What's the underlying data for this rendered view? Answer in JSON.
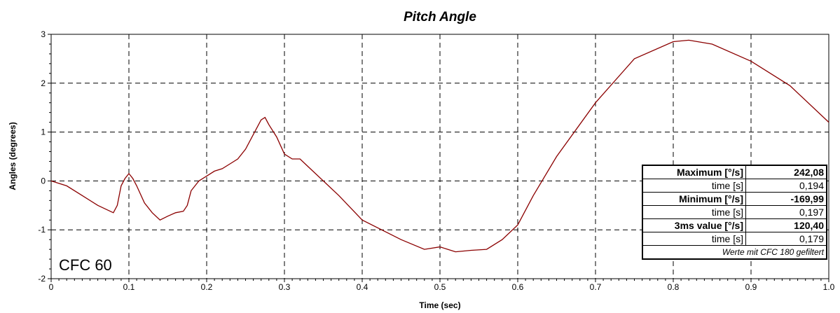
{
  "chart_data": {
    "type": "line",
    "title": "Pitch Angle",
    "xlabel": "Time (sec)",
    "ylabel": "Angles (degrees)",
    "xlim": [
      0,
      1.0
    ],
    "ylim": [
      -2,
      3
    ],
    "x_ticks": [
      "0",
      "0.1",
      "0.2",
      "0.3",
      "0.4",
      "0.5",
      "0.6",
      "0.7",
      "0.8",
      "0.9",
      "1.0"
    ],
    "y_ticks": [
      "-2",
      "-1",
      "0",
      "1",
      "2",
      "3"
    ],
    "grid": true,
    "line_color": "#8b0000",
    "series": [
      {
        "x": [
          0.0,
          0.02,
          0.04,
          0.06,
          0.08,
          0.085,
          0.09,
          0.095,
          0.1,
          0.105,
          0.11,
          0.12,
          0.13,
          0.14,
          0.15,
          0.16,
          0.17,
          0.175,
          0.18,
          0.19,
          0.2,
          0.21,
          0.22,
          0.23,
          0.24,
          0.25,
          0.26,
          0.27,
          0.275,
          0.28,
          0.29,
          0.3,
          0.31,
          0.32,
          0.33,
          0.35,
          0.37,
          0.4,
          0.45,
          0.48,
          0.5,
          0.52,
          0.54,
          0.56,
          0.58,
          0.6,
          0.62,
          0.65,
          0.7,
          0.75,
          0.8,
          0.82,
          0.85,
          0.9,
          0.95,
          1.0
        ],
        "y": [
          0.0,
          -0.1,
          -0.3,
          -0.5,
          -0.65,
          -0.5,
          -0.1,
          0.05,
          0.15,
          0.05,
          -0.1,
          -0.45,
          -0.65,
          -0.8,
          -0.72,
          -0.65,
          -0.62,
          -0.5,
          -0.2,
          0.0,
          0.1,
          0.2,
          0.25,
          0.35,
          0.45,
          0.65,
          0.95,
          1.25,
          1.3,
          1.15,
          0.9,
          0.55,
          0.45,
          0.45,
          0.3,
          0.0,
          -0.3,
          -0.8,
          -1.2,
          -1.4,
          -1.35,
          -1.45,
          -1.42,
          -1.4,
          -1.2,
          -0.9,
          -0.3,
          0.5,
          1.6,
          2.5,
          2.85,
          2.88,
          2.8,
          2.45,
          1.95,
          1.2
        ]
      }
    ],
    "annotation": "CFC 60"
  },
  "stats": {
    "rows": [
      {
        "label": "Maximum [°/s]",
        "value": "242,08",
        "bold": true
      },
      {
        "label": "time [s]",
        "value": "0,194",
        "bold": false
      },
      {
        "label": "Minimum [°/s]",
        "value": "-169,99",
        "bold": true
      },
      {
        "label": "time [s]",
        "value": "0,197",
        "bold": false
      },
      {
        "label": "3ms value [°/s]",
        "value": "120,40",
        "bold": true
      },
      {
        "label": "time [s]",
        "value": "0,179",
        "bold": false
      }
    ],
    "caption": "Werte mit CFC 180 gefiltert"
  }
}
